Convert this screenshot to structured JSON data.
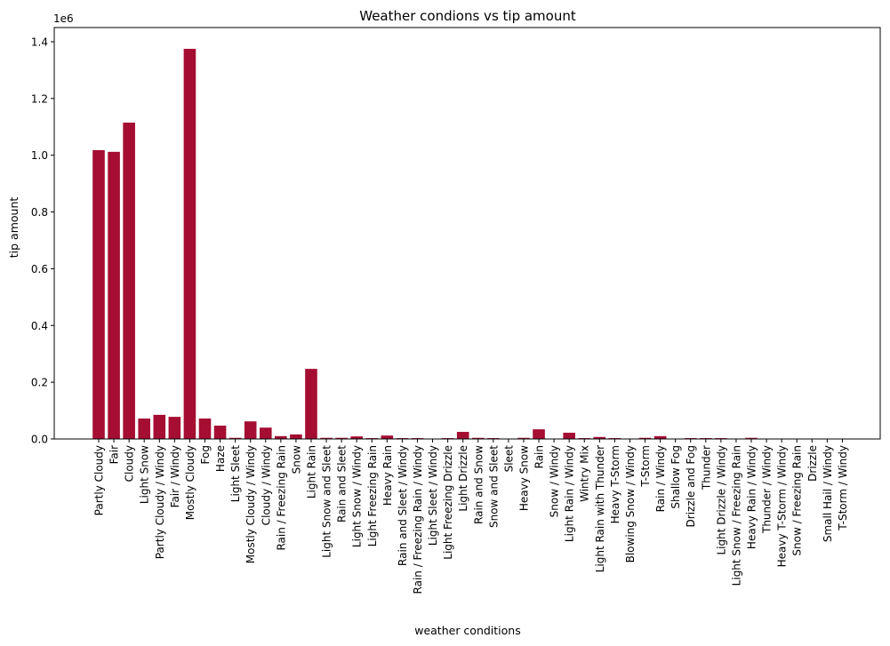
{
  "chart_data": {
    "type": "bar",
    "title": "Weather condions vs tip amount",
    "xlabel": "weather conditions",
    "ylabel": "tip amount",
    "y_offset_label": "1e6",
    "ylim": [
      0,
      1.45
    ],
    "yticks": [
      0.0,
      0.2,
      0.4,
      0.6,
      0.8,
      1.0,
      1.2,
      1.4
    ],
    "ytick_labels": [
      "0.0",
      "0.2",
      "0.4",
      "0.6",
      "0.8",
      "1.0",
      "1.2",
      "1.4"
    ],
    "bar_color": "#a50d32",
    "categories": [
      "Partly Cloudy",
      "Fair",
      "Cloudy",
      "Light Snow",
      "Partly Cloudy / Windy",
      "Fair / Windy",
      "Mostly Cloudy",
      "Fog",
      "Haze",
      "Light Sleet",
      "Mostly Cloudy / Windy",
      "Cloudy / Windy",
      "Rain / Freezing Rain",
      "Snow",
      "Light Rain",
      "Light Snow and Sleet",
      "Rain and Sleet",
      "Light Snow / Windy",
      "Light Freezing Rain",
      "Heavy Rain",
      "Rain and Sleet / Windy",
      "Rain / Freezing Rain / Windy",
      "Light Sleet / Windy",
      "Light Freezing Drizzle",
      "Light Drizzle",
      "Rain and Snow",
      "Snow and Sleet",
      "Sleet",
      "Heavy Snow",
      "Rain",
      "Snow / Windy",
      "Light Rain / Windy",
      "Wintry Mix",
      "Light Rain with Thunder",
      "Heavy T-Storm",
      "Blowing Snow / Windy",
      "T-Storm",
      "Rain / Windy",
      "Shallow Fog",
      "Drizzle and Fog",
      "Thunder",
      "Light Drizzle / Windy",
      "Light Snow / Freezing Rain",
      "Heavy Rain / Windy",
      "Thunder / Windy",
      "Heavy T-Storm / Windy",
      "Snow / Freezing Rain",
      "Drizzle",
      "Small Hail / Windy",
      "T-Storm / Windy"
    ],
    "values": [
      1.018,
      1.012,
      1.115,
      0.072,
      0.085,
      0.078,
      1.375,
      0.072,
      0.047,
      0.004,
      0.062,
      0.04,
      0.01,
      0.016,
      0.247,
      0.004,
      0.004,
      0.009,
      0.003,
      0.012,
      0.003,
      0.003,
      0.001,
      0.003,
      0.025,
      0.004,
      0.003,
      0.001,
      0.004,
      0.034,
      0.001,
      0.022,
      0.003,
      0.007,
      0.003,
      0.001,
      0.004,
      0.01,
      0.001,
      0.003,
      0.003,
      0.003,
      0.001,
      0.004,
      0.001,
      0.001,
      0.001,
      0.001,
      0.001,
      0.001
    ]
  }
}
